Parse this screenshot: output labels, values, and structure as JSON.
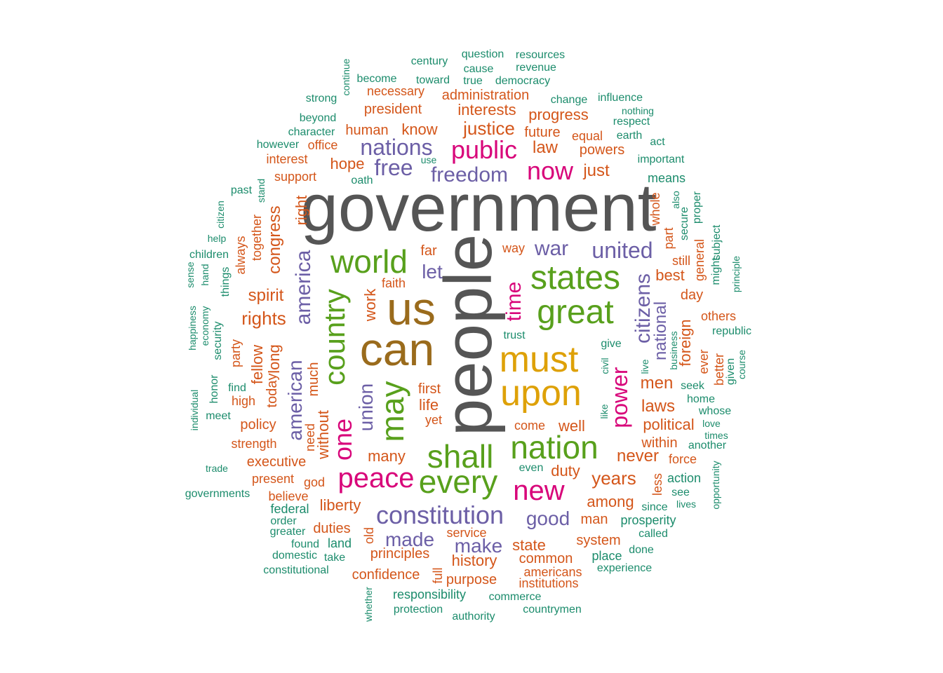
{
  "palette": {
    "gray": "#555555",
    "brown": "#9a6b1c",
    "green": "#58a01c",
    "pink": "#d8067a",
    "gold": "#dea108",
    "purple": "#6c5fa6",
    "orange": "#d4561a",
    "teal": "#1c8c6c"
  },
  "words": [
    {
      "text": "government",
      "color": "gray"
    },
    {
      "text": "people",
      "color": "gray"
    },
    {
      "text": "us",
      "color": "brown"
    },
    {
      "text": "can",
      "color": "brown"
    },
    {
      "text": "may",
      "color": "green"
    },
    {
      "text": "must",
      "color": "gold"
    },
    {
      "text": "upon",
      "color": "gold"
    },
    {
      "text": "states",
      "color": "green"
    },
    {
      "text": "great",
      "color": "green"
    },
    {
      "text": "world",
      "color": "green"
    },
    {
      "text": "country",
      "color": "green"
    },
    {
      "text": "shall",
      "color": "green"
    },
    {
      "text": "every",
      "color": "green"
    },
    {
      "text": "nation",
      "color": "green"
    },
    {
      "text": "peace",
      "color": "pink"
    },
    {
      "text": "new",
      "color": "pink"
    },
    {
      "text": "one",
      "color": "pink"
    },
    {
      "text": "public",
      "color": "pink"
    },
    {
      "text": "now",
      "color": "pink"
    },
    {
      "text": "power",
      "color": "pink"
    },
    {
      "text": "time",
      "color": "pink"
    },
    {
      "text": "constitution",
      "color": "purple"
    },
    {
      "text": "nations",
      "color": "purple"
    },
    {
      "text": "freedom",
      "color": "purple"
    },
    {
      "text": "free",
      "color": "purple"
    },
    {
      "text": "united",
      "color": "purple"
    },
    {
      "text": "citizens",
      "color": "purple"
    },
    {
      "text": "america",
      "color": "purple"
    },
    {
      "text": "union",
      "color": "purple"
    },
    {
      "text": "american",
      "color": "purple"
    },
    {
      "text": "war",
      "color": "purple"
    },
    {
      "text": "let",
      "color": "purple"
    },
    {
      "text": "good",
      "color": "purple"
    },
    {
      "text": "made",
      "color": "purple"
    },
    {
      "text": "make",
      "color": "purple"
    },
    {
      "text": "national",
      "color": "purple"
    },
    {
      "text": "justice",
      "color": "orange"
    },
    {
      "text": "interests",
      "color": "orange"
    },
    {
      "text": "law",
      "color": "orange"
    },
    {
      "text": "just",
      "color": "orange"
    },
    {
      "text": "powers",
      "color": "orange"
    },
    {
      "text": "progress",
      "color": "orange"
    },
    {
      "text": "future",
      "color": "orange"
    },
    {
      "text": "equal",
      "color": "orange"
    },
    {
      "text": "administration",
      "color": "orange"
    },
    {
      "text": "necessary",
      "color": "orange"
    },
    {
      "text": "president",
      "color": "orange"
    },
    {
      "text": "human",
      "color": "orange"
    },
    {
      "text": "know",
      "color": "orange"
    },
    {
      "text": "hope",
      "color": "orange"
    },
    {
      "text": "office",
      "color": "orange"
    },
    {
      "text": "interest",
      "color": "orange"
    },
    {
      "text": "support",
      "color": "orange"
    },
    {
      "text": "right",
      "color": "orange"
    },
    {
      "text": "congress",
      "color": "orange"
    },
    {
      "text": "together",
      "color": "orange"
    },
    {
      "text": "always",
      "color": "orange"
    },
    {
      "text": "spirit",
      "color": "orange"
    },
    {
      "text": "rights",
      "color": "orange"
    },
    {
      "text": "far",
      "color": "orange"
    },
    {
      "text": "faith",
      "color": "orange"
    },
    {
      "text": "work",
      "color": "orange"
    },
    {
      "text": "way",
      "color": "orange"
    },
    {
      "text": "best",
      "color": "orange"
    },
    {
      "text": "part",
      "color": "orange"
    },
    {
      "text": "whole",
      "color": "orange"
    },
    {
      "text": "still",
      "color": "orange"
    },
    {
      "text": "day",
      "color": "orange"
    },
    {
      "text": "general",
      "color": "orange"
    },
    {
      "text": "others",
      "color": "orange"
    },
    {
      "text": "foreign",
      "color": "orange"
    },
    {
      "text": "ever",
      "color": "orange"
    },
    {
      "text": "better",
      "color": "orange"
    },
    {
      "text": "men",
      "color": "orange"
    },
    {
      "text": "laws",
      "color": "orange"
    },
    {
      "text": "political",
      "color": "orange"
    },
    {
      "text": "within",
      "color": "orange"
    },
    {
      "text": "never",
      "color": "orange"
    },
    {
      "text": "force",
      "color": "orange"
    },
    {
      "text": "years",
      "color": "orange"
    },
    {
      "text": "less",
      "color": "orange"
    },
    {
      "text": "among",
      "color": "orange"
    },
    {
      "text": "man",
      "color": "orange"
    },
    {
      "text": "system",
      "color": "orange"
    },
    {
      "text": "state",
      "color": "orange"
    },
    {
      "text": "common",
      "color": "orange"
    },
    {
      "text": "americans",
      "color": "orange"
    },
    {
      "text": "institutions",
      "color": "orange"
    },
    {
      "text": "history",
      "color": "orange"
    },
    {
      "text": "purpose",
      "color": "orange"
    },
    {
      "text": "principles",
      "color": "orange"
    },
    {
      "text": "confidence",
      "color": "orange"
    },
    {
      "text": "service",
      "color": "orange"
    },
    {
      "text": "duties",
      "color": "orange"
    },
    {
      "text": "liberty",
      "color": "orange"
    },
    {
      "text": "god",
      "color": "orange"
    },
    {
      "text": "present",
      "color": "orange"
    },
    {
      "text": "believe",
      "color": "orange"
    },
    {
      "text": "executive",
      "color": "orange"
    },
    {
      "text": "strength",
      "color": "orange"
    },
    {
      "text": "policy",
      "color": "orange"
    },
    {
      "text": "high",
      "color": "orange"
    },
    {
      "text": "fellow",
      "color": "orange"
    },
    {
      "text": "long",
      "color": "orange"
    },
    {
      "text": "today",
      "color": "orange"
    },
    {
      "text": "party",
      "color": "orange"
    },
    {
      "text": "much",
      "color": "orange"
    },
    {
      "text": "without",
      "color": "orange"
    },
    {
      "text": "need",
      "color": "orange"
    },
    {
      "text": "first",
      "color": "orange"
    },
    {
      "text": "life",
      "color": "orange"
    },
    {
      "text": "yet",
      "color": "orange"
    },
    {
      "text": "many",
      "color": "orange"
    },
    {
      "text": "come",
      "color": "orange"
    },
    {
      "text": "well",
      "color": "orange"
    },
    {
      "text": "duty",
      "color": "orange"
    },
    {
      "text": "old",
      "color": "orange"
    },
    {
      "text": "full",
      "color": "orange"
    },
    {
      "text": "century",
      "color": "teal"
    },
    {
      "text": "question",
      "color": "teal"
    },
    {
      "text": "resources",
      "color": "teal"
    },
    {
      "text": "cause",
      "color": "teal"
    },
    {
      "text": "revenue",
      "color": "teal"
    },
    {
      "text": "continue",
      "color": "teal"
    },
    {
      "text": "become",
      "color": "teal"
    },
    {
      "text": "toward",
      "color": "teal"
    },
    {
      "text": "true",
      "color": "teal"
    },
    {
      "text": "democracy",
      "color": "teal"
    },
    {
      "text": "strong",
      "color": "teal"
    },
    {
      "text": "change",
      "color": "teal"
    },
    {
      "text": "influence",
      "color": "teal"
    },
    {
      "text": "nothing",
      "color": "teal"
    },
    {
      "text": "respect",
      "color": "teal"
    },
    {
      "text": "beyond",
      "color": "teal"
    },
    {
      "text": "character",
      "color": "teal"
    },
    {
      "text": "earth",
      "color": "teal"
    },
    {
      "text": "act",
      "color": "teal"
    },
    {
      "text": "however",
      "color": "teal"
    },
    {
      "text": "use",
      "color": "teal"
    },
    {
      "text": "important",
      "color": "teal"
    },
    {
      "text": "oath",
      "color": "teal"
    },
    {
      "text": "means",
      "color": "teal"
    },
    {
      "text": "past",
      "color": "teal"
    },
    {
      "text": "stand",
      "color": "teal"
    },
    {
      "text": "also",
      "color": "teal"
    },
    {
      "text": "proper",
      "color": "teal"
    },
    {
      "text": "citizen",
      "color": "teal"
    },
    {
      "text": "secure",
      "color": "teal"
    },
    {
      "text": "help",
      "color": "teal"
    },
    {
      "text": "subject",
      "color": "teal"
    },
    {
      "text": "children",
      "color": "teal"
    },
    {
      "text": "sense",
      "color": "teal"
    },
    {
      "text": "hand",
      "color": "teal"
    },
    {
      "text": "things",
      "color": "teal"
    },
    {
      "text": "might",
      "color": "teal"
    },
    {
      "text": "principle",
      "color": "teal"
    },
    {
      "text": "happiness",
      "color": "teal"
    },
    {
      "text": "economy",
      "color": "teal"
    },
    {
      "text": "security",
      "color": "teal"
    },
    {
      "text": "republic",
      "color": "teal"
    },
    {
      "text": "trust",
      "color": "teal"
    },
    {
      "text": "business",
      "color": "teal"
    },
    {
      "text": "give",
      "color": "teal"
    },
    {
      "text": "civil",
      "color": "teal"
    },
    {
      "text": "live",
      "color": "teal"
    },
    {
      "text": "given",
      "color": "teal"
    },
    {
      "text": "course",
      "color": "teal"
    },
    {
      "text": "seek",
      "color": "teal"
    },
    {
      "text": "find",
      "color": "teal"
    },
    {
      "text": "honor",
      "color": "teal"
    },
    {
      "text": "home",
      "color": "teal"
    },
    {
      "text": "whose",
      "color": "teal"
    },
    {
      "text": "individual",
      "color": "teal"
    },
    {
      "text": "like",
      "color": "teal"
    },
    {
      "text": "meet",
      "color": "teal"
    },
    {
      "text": "love",
      "color": "teal"
    },
    {
      "text": "times",
      "color": "teal"
    },
    {
      "text": "another",
      "color": "teal"
    },
    {
      "text": "opportunity",
      "color": "teal"
    },
    {
      "text": "trade",
      "color": "teal"
    },
    {
      "text": "even",
      "color": "teal"
    },
    {
      "text": "action",
      "color": "teal"
    },
    {
      "text": "governments",
      "color": "teal"
    },
    {
      "text": "see",
      "color": "teal"
    },
    {
      "text": "since",
      "color": "teal"
    },
    {
      "text": "lives",
      "color": "teal"
    },
    {
      "text": "federal",
      "color": "teal"
    },
    {
      "text": "order",
      "color": "teal"
    },
    {
      "text": "prosperity",
      "color": "teal"
    },
    {
      "text": "greater",
      "color": "teal"
    },
    {
      "text": "called",
      "color": "teal"
    },
    {
      "text": "found",
      "color": "teal"
    },
    {
      "text": "land",
      "color": "teal"
    },
    {
      "text": "done",
      "color": "teal"
    },
    {
      "text": "domestic",
      "color": "teal"
    },
    {
      "text": "take",
      "color": "teal"
    },
    {
      "text": "place",
      "color": "teal"
    },
    {
      "text": "constitutional",
      "color": "teal"
    },
    {
      "text": "experience",
      "color": "teal"
    },
    {
      "text": "responsibility",
      "color": "teal"
    },
    {
      "text": "commerce",
      "color": "teal"
    },
    {
      "text": "whether",
      "color": "teal"
    },
    {
      "text": "protection",
      "color": "teal"
    },
    {
      "text": "authority",
      "color": "teal"
    },
    {
      "text": "countrymen",
      "color": "teal"
    }
  ]
}
